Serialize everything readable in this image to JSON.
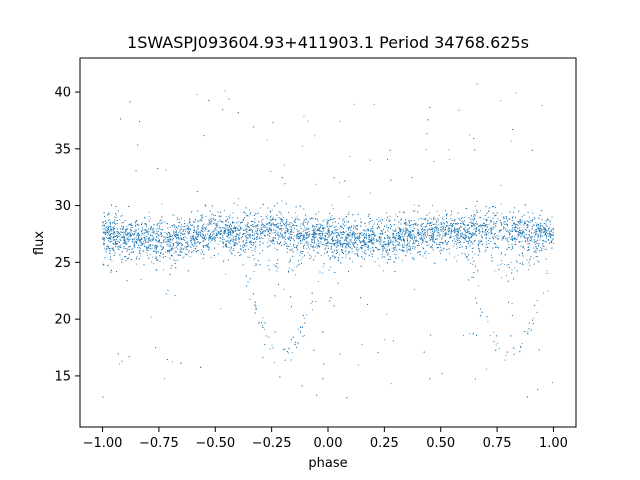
{
  "chart_data": {
    "type": "scatter",
    "title": "1SWASPJ093604.93+411903.1 Period 34768.625s",
    "xlabel": "phase",
    "ylabel": "flux",
    "xlim": [
      -1.1,
      1.1
    ],
    "ylim": [
      10.5,
      43
    ],
    "xticks": [
      -1.0,
      -0.75,
      -0.5,
      -0.25,
      0.0,
      0.25,
      0.5,
      0.75,
      1.0
    ],
    "xtick_labels": [
      "−1.00",
      "−0.75",
      "−0.50",
      "−0.25",
      "0.00",
      "0.25",
      "0.50",
      "0.75",
      "1.00"
    ],
    "yticks": [
      15,
      20,
      25,
      30,
      35,
      40
    ],
    "ytick_labels": [
      "15",
      "20",
      "25",
      "30",
      "35",
      "40"
    ],
    "grid": false,
    "point_color": "#1f77b4",
    "series": [
      {
        "description_of_structure": "phase-folded light curve repeated over two cycles",
        "x": [
          -1.0,
          -0.9,
          -0.8,
          -0.7,
          -0.6,
          -0.5,
          -0.4,
          -0.3,
          -0.25,
          -0.2,
          -0.15,
          -0.1,
          0.0,
          0.1,
          0.2,
          0.3,
          0.4,
          0.5,
          0.6,
          0.7,
          0.75,
          0.8,
          0.85,
          0.9,
          1.0
        ],
        "y": [
          27.5,
          27.3,
          27.0,
          27.0,
          27.4,
          27.5,
          27.6,
          27.8,
          28.0,
          27.8,
          27.5,
          27.4,
          27.2,
          27.0,
          27.0,
          27.2,
          27.5,
          27.6,
          27.7,
          27.9,
          28.0,
          27.9,
          27.6,
          27.5,
          27.5
        ]
      }
    ]
  }
}
